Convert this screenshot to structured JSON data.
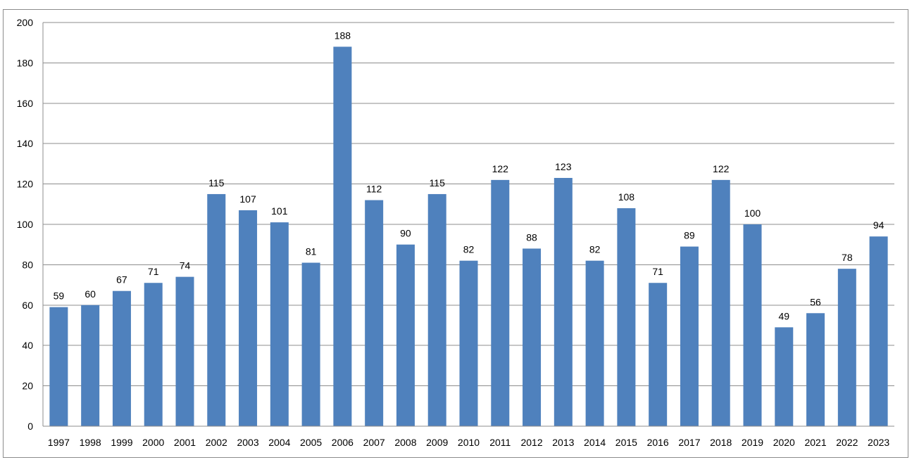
{
  "chart_data": {
    "type": "bar",
    "categories": [
      "1997",
      "1998",
      "1999",
      "2000",
      "2001",
      "2002",
      "2003",
      "2004",
      "2005",
      "2006",
      "2007",
      "2008",
      "2009",
      "2010",
      "2011",
      "2012",
      "2013",
      "2014",
      "2015",
      "2016",
      "2017",
      "2018",
      "2019",
      "2020",
      "2021",
      "2022",
      "2023"
    ],
    "values": [
      59,
      60,
      67,
      71,
      74,
      115,
      107,
      101,
      81,
      188,
      112,
      90,
      115,
      82,
      122,
      88,
      123,
      82,
      108,
      71,
      89,
      122,
      100,
      49,
      56,
      78,
      94
    ],
    "ylim": [
      0,
      200
    ],
    "yticks": [
      0,
      20,
      40,
      60,
      80,
      100,
      120,
      140,
      160,
      180,
      200
    ],
    "grid": true,
    "legend": "none",
    "bar_color": "#4f81bd",
    "gridline_color": "#8c8c8c",
    "data_labels": true,
    "title": "",
    "xlabel": "",
    "ylabel": ""
  }
}
